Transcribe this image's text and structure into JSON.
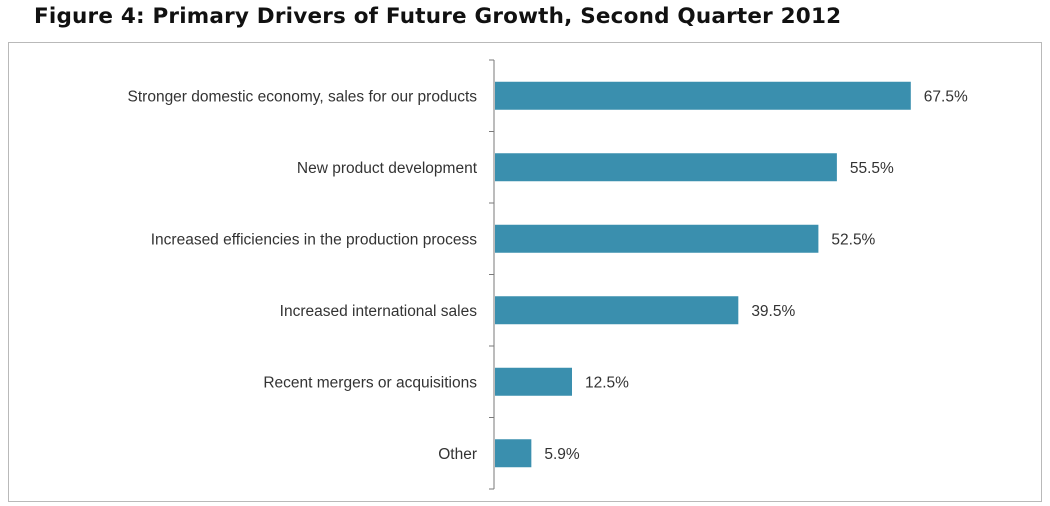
{
  "chart_data": {
    "type": "bar",
    "orientation": "horizontal",
    "title": "Figure 4: Primary Drivers of Future Growth, Second Quarter 2012",
    "categories": [
      "Stronger domestic economy, sales for our products",
      "New  product development",
      "Increased efficiencies in the production process",
      "Increased international sales",
      "Recent mergers or acquisitions",
      "Other"
    ],
    "values": [
      67.5,
      55.5,
      52.5,
      39.5,
      12.5,
      5.9
    ],
    "value_labels": [
      "67.5%",
      "55.5%",
      "52.5%",
      "39.5%",
      "12.5%",
      "5.9%"
    ],
    "xlim": [
      0,
      80
    ],
    "grid": false,
    "legend": "none",
    "bar_color": "#3a8fae"
  }
}
